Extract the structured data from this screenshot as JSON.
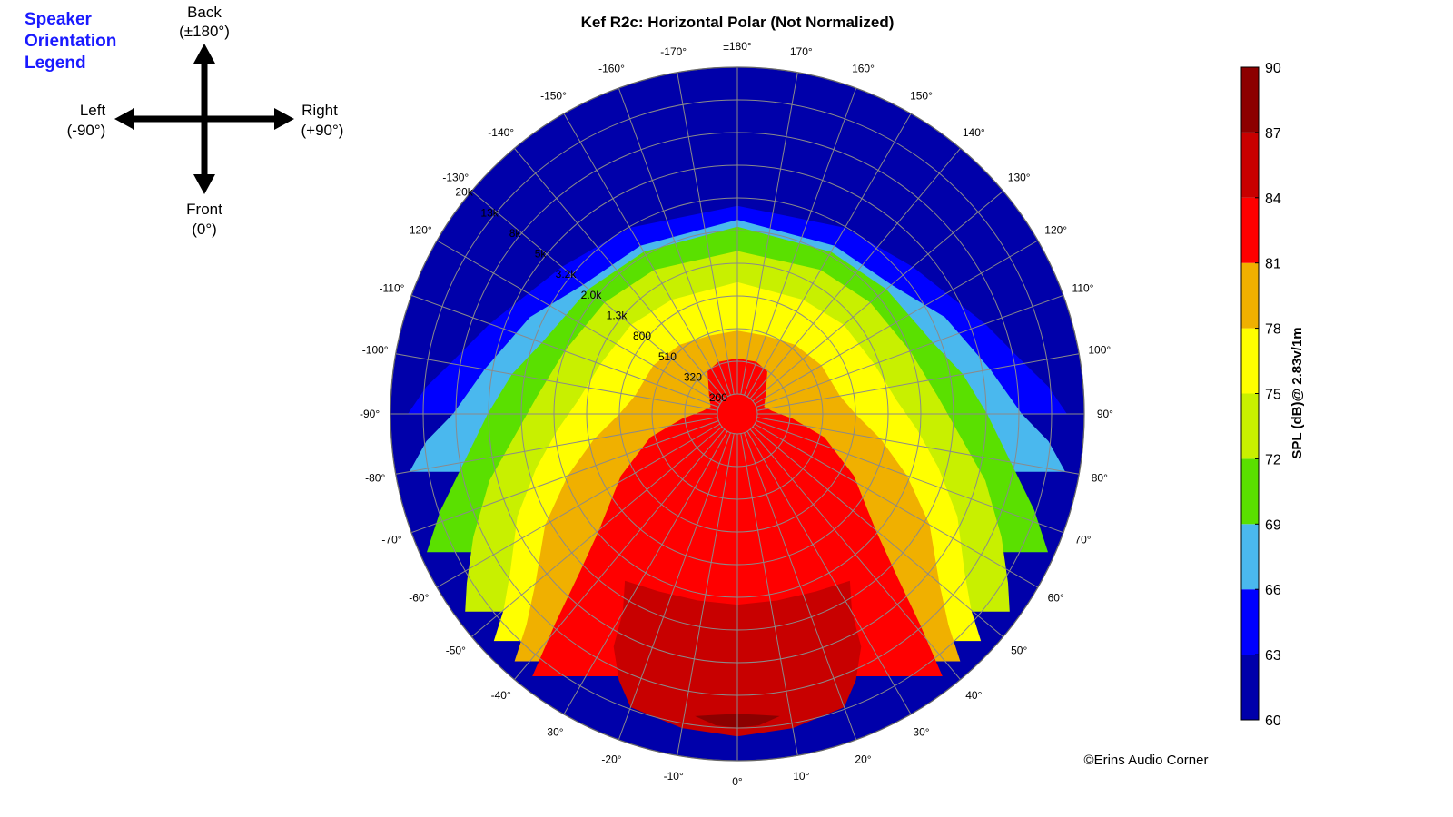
{
  "chart_data": {
    "type": "heatmap",
    "subtype": "polar",
    "title": "Kef R2c: Horizontal Polar (Not Normalized)",
    "colorbar": {
      "label": "SPL (dB)@ 2.83v/1m",
      "ticks": [
        90,
        87,
        84,
        81,
        78,
        75,
        72,
        69,
        66,
        63,
        60
      ],
      "range": [
        60,
        90
      ],
      "bands": [
        {
          "from": 60,
          "to": 63,
          "color": "#0000aa"
        },
        {
          "from": 63,
          "to": 66,
          "color": "#0000ff"
        },
        {
          "from": 66,
          "to": 69,
          "color": "#4ab8ee"
        },
        {
          "from": 69,
          "to": 72,
          "color": "#5ae000"
        },
        {
          "from": 72,
          "to": 75,
          "color": "#c8f000"
        },
        {
          "from": 75,
          "to": 78,
          "color": "#ffff00"
        },
        {
          "from": 78,
          "to": 81,
          "color": "#f0b000"
        },
        {
          "from": 81,
          "to": 84,
          "color": "#ff0000"
        },
        {
          "from": 84,
          "to": 87,
          "color": "#c80000"
        },
        {
          "from": 87,
          "to": 90,
          "color": "#8c0000"
        }
      ]
    },
    "angle_labels": [
      {
        "deg": 180,
        "text": "±180°"
      },
      {
        "deg": 170,
        "text": "170°"
      },
      {
        "deg": 160,
        "text": "160°"
      },
      {
        "deg": 150,
        "text": "150°"
      },
      {
        "deg": 140,
        "text": "140°"
      },
      {
        "deg": 130,
        "text": "130°"
      },
      {
        "deg": 120,
        "text": "120°"
      },
      {
        "deg": 110,
        "text": "110°"
      },
      {
        "deg": 100,
        "text": "100°"
      },
      {
        "deg": 90,
        "text": "90°"
      },
      {
        "deg": 80,
        "text": "80°"
      },
      {
        "deg": 70,
        "text": "70°"
      },
      {
        "deg": 60,
        "text": "60°"
      },
      {
        "deg": 50,
        "text": "50°"
      },
      {
        "deg": 40,
        "text": "40°"
      },
      {
        "deg": 30,
        "text": "30°"
      },
      {
        "deg": 20,
        "text": "20°"
      },
      {
        "deg": 10,
        "text": "10°"
      },
      {
        "deg": 0,
        "text": "0°"
      },
      {
        "deg": -10,
        "text": "-10°"
      },
      {
        "deg": -20,
        "text": "-20°"
      },
      {
        "deg": -30,
        "text": "-30°"
      },
      {
        "deg": -40,
        "text": "-40°"
      },
      {
        "deg": -50,
        "text": "-50°"
      },
      {
        "deg": -60,
        "text": "-60°"
      },
      {
        "deg": -70,
        "text": "-70°"
      },
      {
        "deg": -80,
        "text": "-80°"
      },
      {
        "deg": -90,
        "text": "-90°"
      },
      {
        "deg": -100,
        "text": "-100°"
      },
      {
        "deg": -110,
        "text": "-110°"
      },
      {
        "deg": -120,
        "text": "-120°"
      },
      {
        "deg": -130,
        "text": "-130°"
      },
      {
        "deg": -140,
        "text": "-140°"
      },
      {
        "deg": -150,
        "text": "-150°"
      },
      {
        "deg": -160,
        "text": "-160°"
      },
      {
        "deg": -170,
        "text": "-170°"
      }
    ],
    "frequency_labels": [
      "200",
      "320",
      "510",
      "800",
      "1.3k",
      "2.0k",
      "3.2k",
      "5k",
      "8k",
      "13k",
      "20k"
    ],
    "regions": [
      {
        "level": 63,
        "color": "#0000ff",
        "pts": [
          [
            -180,
            0.6
          ],
          [
            -150,
            0.62
          ],
          [
            -130,
            0.66
          ],
          [
            -110,
            0.76
          ],
          [
            -100,
            0.84
          ],
          [
            -95,
            0.9
          ],
          [
            -90,
            0.95
          ],
          [
            90,
            0.95
          ],
          [
            95,
            0.9
          ],
          [
            100,
            0.84
          ],
          [
            110,
            0.76
          ],
          [
            130,
            0.66
          ],
          [
            150,
            0.62
          ],
          [
            180,
            0.6
          ]
        ]
      },
      {
        "level": 67,
        "color": "#4ab8ee",
        "pts": [
          [
            -180,
            0.56
          ],
          [
            -150,
            0.56
          ],
          [
            -130,
            0.58
          ],
          [
            -115,
            0.66
          ],
          [
            -100,
            0.74
          ],
          [
            -90,
            0.82
          ],
          [
            -85,
            0.9
          ],
          [
            -80,
            0.96
          ],
          [
            80,
            0.96
          ],
          [
            85,
            0.9
          ],
          [
            90,
            0.82
          ],
          [
            100,
            0.74
          ],
          [
            115,
            0.66
          ],
          [
            130,
            0.58
          ],
          [
            150,
            0.56
          ],
          [
            180,
            0.56
          ]
        ]
      },
      {
        "level": 71,
        "color": "#5ae000",
        "pts": [
          [
            -180,
            0.54
          ],
          [
            -150,
            0.54
          ],
          [
            -130,
            0.56
          ],
          [
            -110,
            0.6
          ],
          [
            -100,
            0.66
          ],
          [
            -90,
            0.72
          ],
          [
            -80,
            0.8
          ],
          [
            -72,
            0.9
          ],
          [
            -66,
            0.98
          ],
          [
            66,
            0.98
          ],
          [
            72,
            0.9
          ],
          [
            80,
            0.8
          ],
          [
            90,
            0.72
          ],
          [
            100,
            0.66
          ],
          [
            110,
            0.6
          ],
          [
            130,
            0.56
          ],
          [
            150,
            0.54
          ],
          [
            180,
            0.54
          ]
        ]
      },
      {
        "level": 74,
        "color": "#c8f000",
        "pts": [
          [
            -180,
            0.47
          ],
          [
            -150,
            0.48
          ],
          [
            -130,
            0.5
          ],
          [
            -110,
            0.53
          ],
          [
            -95,
            0.58
          ],
          [
            -85,
            0.64
          ],
          [
            -75,
            0.74
          ],
          [
            -65,
            0.84
          ],
          [
            -58,
            0.92
          ],
          [
            -54,
            0.97
          ],
          [
            54,
            0.97
          ],
          [
            58,
            0.92
          ],
          [
            65,
            0.84
          ],
          [
            75,
            0.74
          ],
          [
            85,
            0.64
          ],
          [
            95,
            0.58
          ],
          [
            110,
            0.53
          ],
          [
            130,
            0.5
          ],
          [
            150,
            0.48
          ],
          [
            180,
            0.47
          ]
        ]
      },
      {
        "level": 77,
        "color": "#ffff00",
        "pts": [
          [
            -180,
            0.38
          ],
          [
            -150,
            0.38
          ],
          [
            -130,
            0.4
          ],
          [
            -110,
            0.42
          ],
          [
            -95,
            0.46
          ],
          [
            -85,
            0.52
          ],
          [
            -75,
            0.6
          ],
          [
            -65,
            0.7
          ],
          [
            -55,
            0.8
          ],
          [
            -50,
            0.88
          ],
          [
            -47,
            0.96
          ],
          [
            47,
            0.96
          ],
          [
            50,
            0.88
          ],
          [
            55,
            0.8
          ],
          [
            65,
            0.7
          ],
          [
            75,
            0.6
          ],
          [
            85,
            0.52
          ],
          [
            95,
            0.46
          ],
          [
            110,
            0.42
          ],
          [
            130,
            0.4
          ],
          [
            150,
            0.38
          ],
          [
            180,
            0.38
          ]
        ]
      },
      {
        "level": 80,
        "color": "#f0b000",
        "pts": [
          [
            -180,
            0.24
          ],
          [
            -160,
            0.24
          ],
          [
            -140,
            0.26
          ],
          [
            -120,
            0.28
          ],
          [
            -100,
            0.3
          ],
          [
            -90,
            0.34
          ],
          [
            -80,
            0.42
          ],
          [
            -70,
            0.52
          ],
          [
            -60,
            0.64
          ],
          [
            -50,
            0.76
          ],
          [
            -45,
            0.86
          ],
          [
            -42,
            0.96
          ],
          [
            42,
            0.96
          ],
          [
            45,
            0.86
          ],
          [
            50,
            0.76
          ],
          [
            60,
            0.64
          ],
          [
            70,
            0.52
          ],
          [
            80,
            0.42
          ],
          [
            90,
            0.34
          ],
          [
            100,
            0.3
          ],
          [
            120,
            0.28
          ],
          [
            140,
            0.26
          ],
          [
            160,
            0.24
          ],
          [
            180,
            0.24
          ]
        ]
      },
      {
        "level": 83,
        "color": "#ff0000",
        "pts": [
          [
            -180,
            0.16
          ],
          [
            -160,
            0.16
          ],
          [
            -145,
            0.15
          ],
          [
            -125,
            0.1
          ],
          [
            -105,
            0.08
          ],
          [
            -95,
            0.1
          ],
          [
            -85,
            0.16
          ],
          [
            -75,
            0.26
          ],
          [
            -62,
            0.38
          ],
          [
            -50,
            0.52
          ],
          [
            -45,
            0.64
          ],
          [
            -41,
            0.8
          ],
          [
            -38,
            0.96
          ],
          [
            38,
            0.96
          ],
          [
            41,
            0.8
          ],
          [
            45,
            0.64
          ],
          [
            50,
            0.52
          ],
          [
            62,
            0.38
          ],
          [
            75,
            0.26
          ],
          [
            85,
            0.16
          ],
          [
            95,
            0.1
          ],
          [
            105,
            0.08
          ],
          [
            125,
            0.1
          ],
          [
            145,
            0.15
          ],
          [
            160,
            0.16
          ],
          [
            180,
            0.16
          ]
        ]
      },
      {
        "level": 86,
        "color": "#c80000",
        "pts": [
          [
            -34,
            0.58
          ],
          [
            -30,
            0.66
          ],
          [
            -28,
            0.76
          ],
          [
            -24,
            0.84
          ],
          [
            -20,
            0.9
          ],
          [
            -10,
            0.92
          ],
          [
            0,
            0.93
          ],
          [
            10,
            0.92
          ],
          [
            20,
            0.9
          ],
          [
            24,
            0.84
          ],
          [
            28,
            0.76
          ],
          [
            30,
            0.66
          ],
          [
            34,
            0.58
          ],
          [
            24,
            0.56
          ],
          [
            12,
            0.55
          ],
          [
            0,
            0.55
          ],
          [
            -12,
            0.55
          ],
          [
            -24,
            0.56
          ]
        ]
      },
      {
        "level": 88,
        "color": "#8c0000",
        "pts": [
          [
            -8,
            0.88
          ],
          [
            -4,
            0.9
          ],
          [
            0,
            0.905
          ],
          [
            4,
            0.9
          ],
          [
            8,
            0.88
          ],
          [
            4,
            0.87
          ],
          [
            0,
            0.865
          ],
          [
            -4,
            0.87
          ]
        ]
      }
    ]
  },
  "orientation_legend": {
    "title_lines": [
      "Speaker",
      "Orientation",
      "Legend"
    ],
    "back": {
      "label": "Back",
      "sub": "(±180°)"
    },
    "left": {
      "label": "Left",
      "sub": "(-90°)"
    },
    "right": {
      "label": "Right",
      "sub": "(+90°)"
    },
    "front": {
      "label": "Front",
      "sub": "(0°)"
    }
  },
  "credit": "©Erins Audio Corner"
}
